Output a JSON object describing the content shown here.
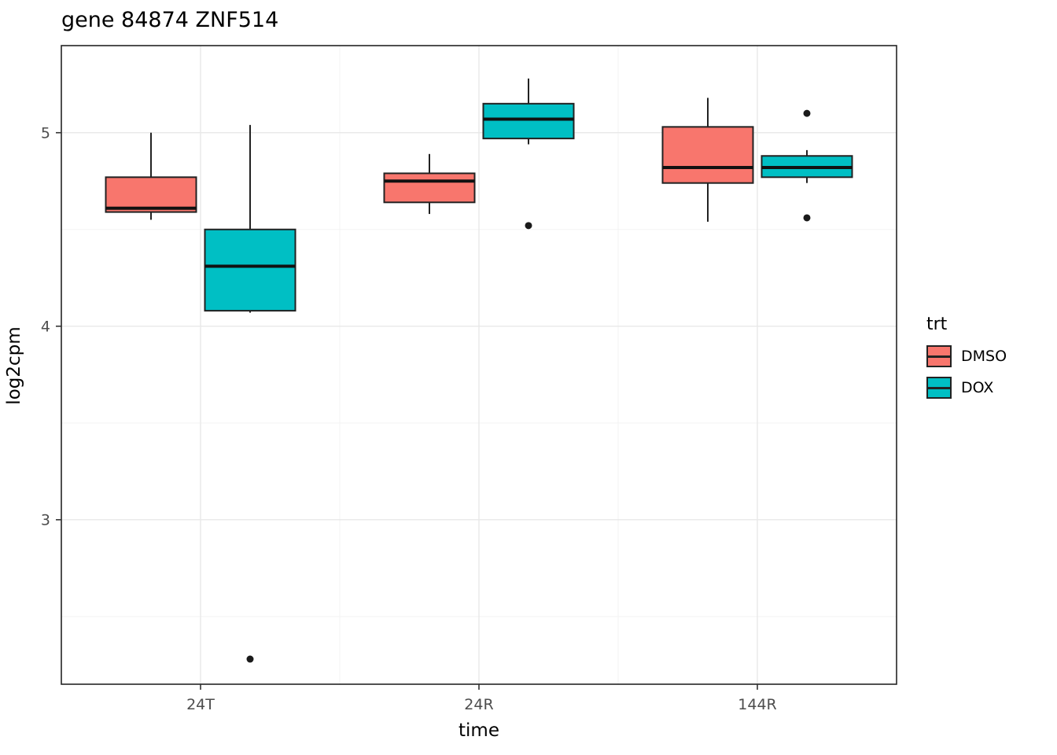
{
  "title": "gene 84874 ZNF514",
  "legend": {
    "title": "trt",
    "entries": [
      {
        "label": "DMSO",
        "color": "#F8766D"
      },
      {
        "label": "DOX",
        "color": "#00BFC4"
      }
    ]
  },
  "chart_data": {
    "type": "boxplot",
    "title": "gene 84874 ZNF514",
    "xlabel": "time",
    "ylabel": "log2cpm",
    "categories": [
      "24T",
      "24R",
      "144R"
    ],
    "ylim": [
      2.15,
      5.45
    ],
    "y_major_gridlines": [
      3,
      4,
      5
    ],
    "y_minor_gridlines": [
      2.5,
      3.5,
      4.5
    ],
    "y_tick_labels": [
      "3",
      "4",
      "5"
    ],
    "grid": true,
    "legend_position": "right",
    "colors": {
      "box_stroke": "#222222",
      "median": "#111111",
      "outlier": "#1a1a1a",
      "major_grid": "#e8e8e8",
      "minor_grid": "#f3f3f3",
      "panel_border": "#242424",
      "tick_label": "#4d4d4d"
    },
    "series": [
      {
        "name": "DMSO",
        "color": "#F8766D",
        "boxes": [
          {
            "category": "24T",
            "whisker_low": 4.55,
            "q1": 4.59,
            "median": 4.61,
            "q3": 4.77,
            "whisker_high": 5.0,
            "outliers": []
          },
          {
            "category": "24R",
            "whisker_low": 4.58,
            "q1": 4.64,
            "median": 4.75,
            "q3": 4.79,
            "whisker_high": 4.89,
            "outliers": []
          },
          {
            "category": "144R",
            "whisker_low": 4.54,
            "q1": 4.74,
            "median": 4.82,
            "q3": 5.03,
            "whisker_high": 5.18,
            "outliers": []
          }
        ]
      },
      {
        "name": "DOX",
        "color": "#00BFC4",
        "boxes": [
          {
            "category": "24T",
            "whisker_low": 4.07,
            "q1": 4.08,
            "median": 4.31,
            "q3": 4.5,
            "whisker_high": 5.04,
            "outliers": [
              2.28
            ]
          },
          {
            "category": "24R",
            "whisker_low": 4.94,
            "q1": 4.97,
            "median": 5.07,
            "q3": 5.15,
            "whisker_high": 5.28,
            "outliers": [
              4.52
            ]
          },
          {
            "category": "144R",
            "whisker_low": 4.74,
            "q1": 4.77,
            "median": 4.82,
            "q3": 4.88,
            "whisker_high": 4.91,
            "outliers": [
              5.1,
              4.56
            ]
          }
        ]
      }
    ]
  }
}
